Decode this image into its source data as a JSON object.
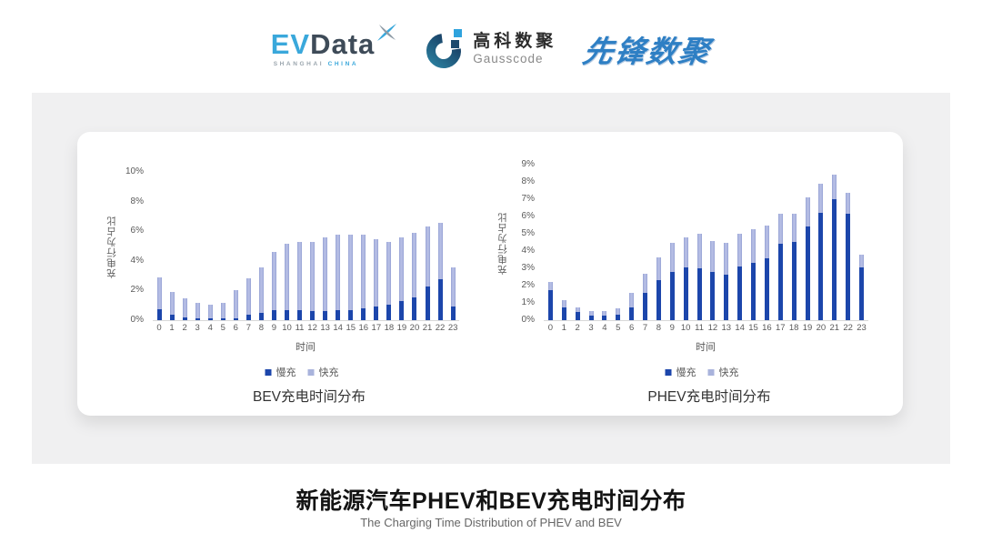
{
  "header": {
    "evdata": {
      "ev": "EV",
      "data": "Data",
      "sub_gray": "SHANGHAI",
      "sub_blue": "CHINA"
    },
    "gausscode": {
      "cn": "高科数聚",
      "en": "Gausscode"
    },
    "xianfeng": {
      "text": "先锋数聚"
    }
  },
  "chart_data": [
    {
      "type": "bar",
      "stacked": true,
      "title": "BEV充电时间分布",
      "xlabel": "时间",
      "ylabel": "充电行为占比",
      "ylim": [
        0,
        10
      ],
      "yticks": [
        0,
        2,
        4,
        6,
        8,
        10
      ],
      "ytick_suffix": "%",
      "grid": false,
      "legend_position": "bottom",
      "categories": [
        "0",
        "1",
        "2",
        "3",
        "4",
        "5",
        "6",
        "7",
        "8",
        "9",
        "10",
        "11",
        "12",
        "13",
        "14",
        "15",
        "16",
        "17",
        "18",
        "19",
        "20",
        "21",
        "22",
        "23"
      ],
      "series": [
        {
          "name": "慢充",
          "color": "#1C46AB",
          "values": [
            0.75,
            0.35,
            0.2,
            0.1,
            0.1,
            0.1,
            0.15,
            0.35,
            0.5,
            0.7,
            0.7,
            0.7,
            0.6,
            0.6,
            0.65,
            0.7,
            0.8,
            0.95,
            1.05,
            1.3,
            1.55,
            2.3,
            2.75,
            0.95
          ]
        },
        {
          "name": "快充",
          "color": "#A9B3DC",
          "values": [
            2.15,
            1.55,
            1.3,
            1.1,
            0.95,
            1.1,
            1.85,
            2.45,
            3.05,
            3.9,
            4.45,
            4.55,
            4.65,
            5.0,
            5.1,
            5.05,
            5.0,
            4.5,
            4.25,
            4.3,
            4.35,
            4.05,
            3.8,
            2.6
          ]
        }
      ]
    },
    {
      "type": "bar",
      "stacked": true,
      "title": "PHEV充电时间分布",
      "xlabel": "时间",
      "ylabel": "充电行为占比",
      "ylim": [
        0,
        9
      ],
      "yticks": [
        0,
        1,
        2,
        3,
        4,
        5,
        6,
        7,
        8,
        9
      ],
      "ytick_suffix": "%",
      "grid": false,
      "legend_position": "bottom",
      "categories": [
        "0",
        "1",
        "2",
        "3",
        "4",
        "5",
        "6",
        "7",
        "8",
        "9",
        "10",
        "11",
        "12",
        "13",
        "14",
        "15",
        "16",
        "17",
        "18",
        "19",
        "20",
        "21",
        "22",
        "23"
      ],
      "series": [
        {
          "name": "慢充",
          "color": "#1C46AB",
          "values": [
            1.75,
            0.75,
            0.45,
            0.25,
            0.25,
            0.3,
            0.75,
            1.6,
            2.3,
            2.8,
            3.05,
            3.0,
            2.8,
            2.65,
            3.1,
            3.3,
            3.6,
            4.4,
            4.55,
            5.4,
            6.2,
            7.0,
            6.15,
            3.05
          ]
        },
        {
          "name": "快充",
          "color": "#A9B3DC",
          "values": [
            0.45,
            0.4,
            0.3,
            0.25,
            0.25,
            0.4,
            0.85,
            1.1,
            1.35,
            1.7,
            1.75,
            2.0,
            1.8,
            1.8,
            1.9,
            1.95,
            1.9,
            1.75,
            1.6,
            1.7,
            1.7,
            1.4,
            1.2,
            0.75
          ]
        }
      ]
    }
  ],
  "footer": {
    "title": "新能源汽车PHEV和BEV充电时间分布",
    "subtitle": "The Charging Time Distribution of PHEV and BEV"
  },
  "colors": {
    "slow": "#1C46AB",
    "fast": "#A9B3DC",
    "axis_text": "#595959",
    "axis_line": "#D9D9D9",
    "panel_bg": "#F0F0F1",
    "card_bg": "#FFFFFF",
    "evdata_blue": "#3AA8DB",
    "evdata_dark": "#3E4B58",
    "gauss_navy": "#1D4A6D",
    "gauss_blue": "#2FA3DD",
    "xianfeng_blue": "#2E7FC4"
  }
}
